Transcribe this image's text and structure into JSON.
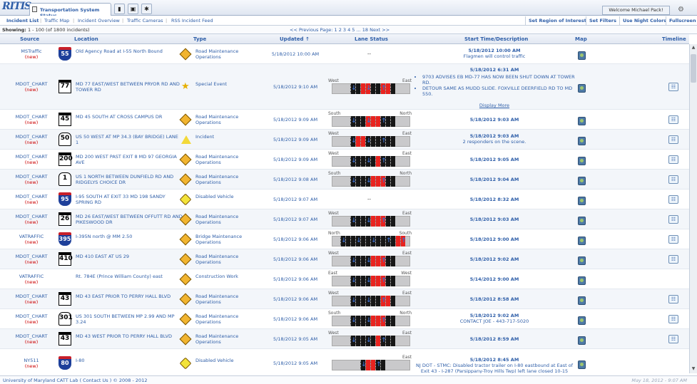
{
  "app": {
    "logo": "RITIS",
    "tab_title": "Transportation System Status",
    "welcome": "Welcome Michael Pack!"
  },
  "nav": {
    "items": [
      "Incident List",
      "Traffic Map",
      "Incident Overview",
      "Traffic Cameras",
      "RSS Incident Feed"
    ],
    "buttons": [
      "Set Region of Interest",
      "Set Filters",
      "Use Night Colors",
      "Fullscreen"
    ]
  },
  "pager": {
    "showing_label": "Showing:",
    "showing_value": "1 - 100 (of 1800 incidents)",
    "text": "<< Previous  Page: 1  2  3  4  5  ...  18  Next >>"
  },
  "columns": [
    "Source",
    "Location",
    "Type",
    "Updated ↑",
    "Lane Status",
    "Start Time/Description",
    "Map",
    "Timeline"
  ],
  "rows": [
    {
      "source": "MSTraffic",
      "new": "(new)",
      "shield": "55",
      "shield_type": "interstate",
      "location": "Old Agency Road at I-55 North Bound",
      "type": "Road Maintenance Operations",
      "icon": "road-work",
      "updated": "5/18/2012 10:00 AM",
      "lane": "--",
      "time": "5/18/2012 10:00 AM",
      "desc": "Flagmen will control traffic",
      "timeline": false
    },
    {
      "source": "MDOT_CHART",
      "new": "(new)",
      "shield": "77",
      "shield_type": "state",
      "location": "MD 77 EAST/WEST BETWEEN PRYOR RD AND TOWER RD",
      "type": "Special Event",
      "icon": "special",
      "updated": "5/18/2012 9:10 AM",
      "lane_left": "West",
      "lane_right": "East",
      "time": "5/18/2012 6:31 AM",
      "bullets": [
        "9703 ADVISES EB MD-77 HAS NOW BEEN SHUT DOWN AT TOWER RD.",
        "DETOUR SAME AS MUDD SLIDE. FOXVILLE DEERFIELD RD TO MD 550."
      ],
      "more": "Display More",
      "timeline": true
    },
    {
      "source": "MDOT_CHART",
      "new": "(new)",
      "shield": "45",
      "shield_type": "state",
      "location": "MD 45 SOUTH AT CROSS CAMPUS DR",
      "type": "Road Maintenance Operations",
      "icon": "road-work",
      "updated": "5/18/2012 9:09 AM",
      "lane_left": "South",
      "lane_right": "North",
      "time": "5/18/2012 9:03 AM",
      "desc": "",
      "timeline": true
    },
    {
      "source": "MDOT_CHART",
      "new": "(new)",
      "shield": "50",
      "shield_type": "us",
      "location": "US 50 WEST AT MP 34.3 (BAY BRIDGE) LANE 1",
      "type": "Incident",
      "icon": "incident",
      "updated": "5/18/2012 9:09 AM",
      "lane_left": "West",
      "lane_right": "East",
      "time": "5/18/2012 9:03 AM",
      "desc": "2 responders on the scene.",
      "timeline": true
    },
    {
      "source": "MDOT_CHART",
      "new": "(new)",
      "shield": "200",
      "shield_type": "state",
      "location": "MD 200 WEST PAST EXIT 8 MD 97 GEORGIA AVE",
      "type": "Road Maintenance Operations",
      "icon": "road-work",
      "updated": "5/18/2012 9:09 AM",
      "lane_left": "West",
      "lane_right": "East",
      "time": "5/18/2012 9:05 AM",
      "desc": "",
      "timeline": true
    },
    {
      "source": "MDOT_CHART",
      "new": "(new)",
      "shield": "1",
      "shield_type": "us",
      "location": "US 1 NORTH BETWEEN DUNFIELD RD AND RIDGELYS CHOICE DR",
      "type": "Road Maintenance Operations",
      "icon": "road-work",
      "updated": "5/18/2012 9:08 AM",
      "lane_left": "South",
      "lane_right": "North",
      "time": "5/18/2012 9:04 AM",
      "desc": "",
      "timeline": true
    },
    {
      "source": "MDOT_CHART",
      "new": "(new)",
      "shield": "95",
      "shield_type": "interstate",
      "location": "I-95 SOUTH AT EXIT 33 MD 198 SANDY SPRING RD",
      "type": "Disabled Vehicle",
      "icon": "disabled",
      "updated": "5/18/2012 9:07 AM",
      "lane": "--",
      "time": "5/18/2012 8:32 AM",
      "desc": "",
      "timeline": true
    },
    {
      "source": "MDOT_CHART",
      "new": "(new)",
      "shield": "26",
      "shield_type": "state",
      "location": "MD 26 EAST/WEST BETWEEN OFFUTT RD AND PIKESWOOD DR",
      "type": "Road Maintenance Operations",
      "icon": "road-work",
      "updated": "5/18/2012 9:07 AM",
      "lane_left": "West",
      "lane_right": "East",
      "time": "5/18/2012 9:03 AM",
      "desc": "",
      "timeline": true
    },
    {
      "source": "VATRAFFIC",
      "new": "(new)",
      "shield": "395",
      "shield_type": "interstate",
      "location": "I-395N north @ MM 2.50",
      "type": "Bridge Maintenance Operations",
      "icon": "road-work",
      "updated": "5/18/2012 9:06 AM",
      "lane_left": "North",
      "lane_right": "South",
      "time": "5/18/2012 9:00 AM",
      "desc": "",
      "timeline": true
    },
    {
      "source": "MDOT_CHART",
      "new": "(new)",
      "shield": "410",
      "shield_type": "state",
      "location": "MD 410 EAST AT US 29",
      "type": "Road Maintenance Operations",
      "icon": "road-work",
      "updated": "5/18/2012 9:06 AM",
      "lane_left": "West",
      "lane_right": "East",
      "time": "5/18/2012 9:02 AM",
      "desc": "",
      "timeline": true
    },
    {
      "source": "VATRAFFIC",
      "new": "(new)",
      "shield": "",
      "shield_type": "none",
      "location": "Rt. 784E (Prince William County) east",
      "type": "Construction Work",
      "icon": "road-work",
      "updated": "5/18/2012 9:06 AM",
      "lane_left": "East",
      "lane_right": "West",
      "time": "5/14/2012 9:00 AM",
      "desc": "",
      "timeline": false
    },
    {
      "source": "MDOT_CHART",
      "new": "(new)",
      "shield": "43",
      "shield_type": "state",
      "location": "MD 43 EAST PRIOR TO PERRY HALL BLVD",
      "type": "Road Maintenance Operations",
      "icon": "road-work",
      "updated": "5/18/2012 9:06 AM",
      "lane_left": "West",
      "lane_right": "East",
      "time": "5/18/2012 8:58 AM",
      "desc": "",
      "timeline": true
    },
    {
      "source": "MDOT_CHART",
      "new": "(new)",
      "shield": "301",
      "shield_type": "us",
      "location": "US 301 SOUTH BETWEEN MP 2.99 AND MP 3.24",
      "type": "Road Maintenance Operations",
      "icon": "road-work",
      "updated": "5/18/2012 9:06 AM",
      "lane_left": "South",
      "lane_right": "North",
      "time": "5/18/2012 9:02 AM",
      "desc": "CONTACT JOE - 443-717-5020",
      "timeline": true
    },
    {
      "source": "MDOT_CHART",
      "new": "(new)",
      "shield": "43",
      "shield_type": "state",
      "location": "MD 43 WEST PRIOR TO PERRY HALL BLVD",
      "type": "Road Maintenance Operations",
      "icon": "road-work",
      "updated": "5/18/2012 9:05 AM",
      "lane_left": "West",
      "lane_right": "East",
      "time": "5/18/2012 8:59 AM",
      "desc": "",
      "timeline": true
    },
    {
      "source": "NY511",
      "new": "(new)",
      "shield": "80",
      "shield_type": "interstate",
      "location": "I-80",
      "type": "Disabled Vehicle",
      "icon": "disabled",
      "updated": "5/18/2012 9:05 AM",
      "lane_left": "",
      "lane_right": "East",
      "time": "5/18/2012 8:45 AM",
      "desc": "NJ DOT - STMC: Disabled tractor trailer on I-80 eastbound at East of Exit 43 - I-287 (Parsippany-Troy Hills Twp) left lane closed 10-15",
      "timeline": false
    }
  ],
  "footer": {
    "left": "University of Maryland CATT Lab ( Contact Us )   © 2008 - 2012",
    "right": "May 18, 2012 - 9:07 AM"
  }
}
